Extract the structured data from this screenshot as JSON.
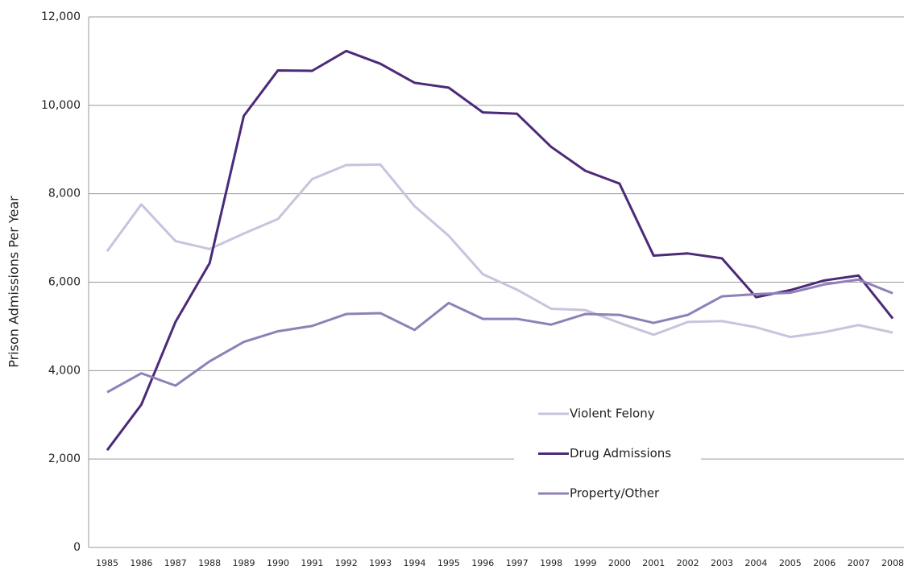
{
  "chart_data": {
    "type": "line",
    "y_label": "Prison Admissions Per Year",
    "categories": [
      "1985",
      "1986",
      "1987",
      "1988",
      "1989",
      "1990",
      "1991",
      "1992",
      "1993",
      "1994",
      "1995",
      "1996",
      "1997",
      "1998",
      "1999",
      "2000",
      "2001",
      "2002",
      "2003",
      "2004",
      "2005",
      "2006",
      "2007",
      "2008"
    ],
    "series": [
      {
        "name": "Violent Felony",
        "color": "#c9c3dd",
        "values": [
          6700,
          7760,
          6930,
          6750,
          7100,
          7430,
          8330,
          8650,
          8660,
          7720,
          7050,
          6180,
          5830,
          5400,
          5370,
          5080,
          4810,
          5100,
          5120,
          4980,
          4760,
          4870,
          5030,
          4860
        ]
      },
      {
        "name": "Drug Admissions",
        "color": "#4b2a78",
        "values": [
          2200,
          3230,
          5100,
          6430,
          9760,
          10790,
          10780,
          11230,
          10940,
          10510,
          10400,
          9840,
          9810,
          9060,
          8520,
          8230,
          6600,
          6650,
          6540,
          5660,
          5820,
          6040,
          6150,
          5180
        ]
      },
      {
        "name": "Property/Other",
        "color": "#8f80b8",
        "values": [
          3510,
          3940,
          3660,
          4210,
          4650,
          4890,
          5010,
          5280,
          5300,
          4920,
          5530,
          5170,
          5170,
          5040,
          5280,
          5260,
          5080,
          5260,
          5680,
          5730,
          5760,
          5950,
          6060,
          5750
        ]
      }
    ],
    "ylim": [
      0,
      12000
    ],
    "yticks": [
      0,
      {
        "value": 2000,
        "label": "2,000"
      },
      {
        "value": 4000,
        "label": "4,000"
      },
      {
        "value": 6000,
        "label": "6,000"
      },
      {
        "value": 8000,
        "label": "8,000"
      },
      {
        "value": 10000,
        "label": "10,000"
      },
      {
        "value": 12000,
        "label": "12,000"
      }
    ],
    "grid": true
  }
}
